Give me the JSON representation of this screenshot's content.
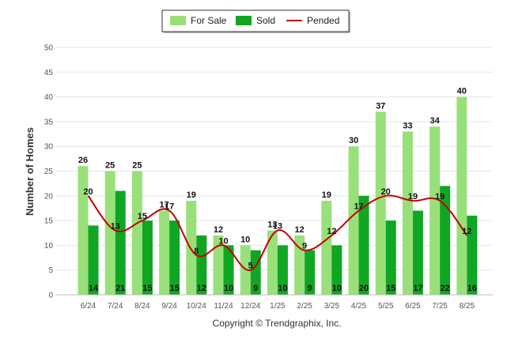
{
  "chart_data": {
    "type": "bar",
    "ylabel": "Number of Homes",
    "ylim": [
      0,
      50
    ],
    "yticks": [
      0,
      5,
      10,
      15,
      20,
      25,
      30,
      35,
      40,
      45,
      50
    ],
    "grid": true,
    "legend_position": "top-center",
    "categories": [
      "6/24",
      "7/24",
      "8/24",
      "9/24",
      "10/24",
      "11/24",
      "12/24",
      "1/25",
      "2/25",
      "3/25",
      "4/25",
      "5/25",
      "6/25",
      "7/25",
      "8/25"
    ],
    "series": [
      {
        "name": "For Sale",
        "type": "bar",
        "color": "#99e07a",
        "values": [
          26,
          25,
          25,
          17,
          19,
          12,
          10,
          13,
          12,
          19,
          30,
          37,
          33,
          34,
          40
        ]
      },
      {
        "name": "Sold",
        "type": "bar",
        "color": "#10a624",
        "values": [
          14,
          21,
          15,
          15,
          12,
          10,
          9,
          10,
          9,
          10,
          20,
          15,
          17,
          22,
          16
        ]
      },
      {
        "name": "Pended",
        "type": "line",
        "color": "#c40000",
        "values": [
          20,
          13,
          15,
          17,
          8,
          10,
          5,
          13,
          9,
          12,
          17,
          20,
          19,
          19,
          12
        ]
      }
    ]
  },
  "footer": {
    "copyright": "Copyright © Trendgraphix, Inc."
  }
}
